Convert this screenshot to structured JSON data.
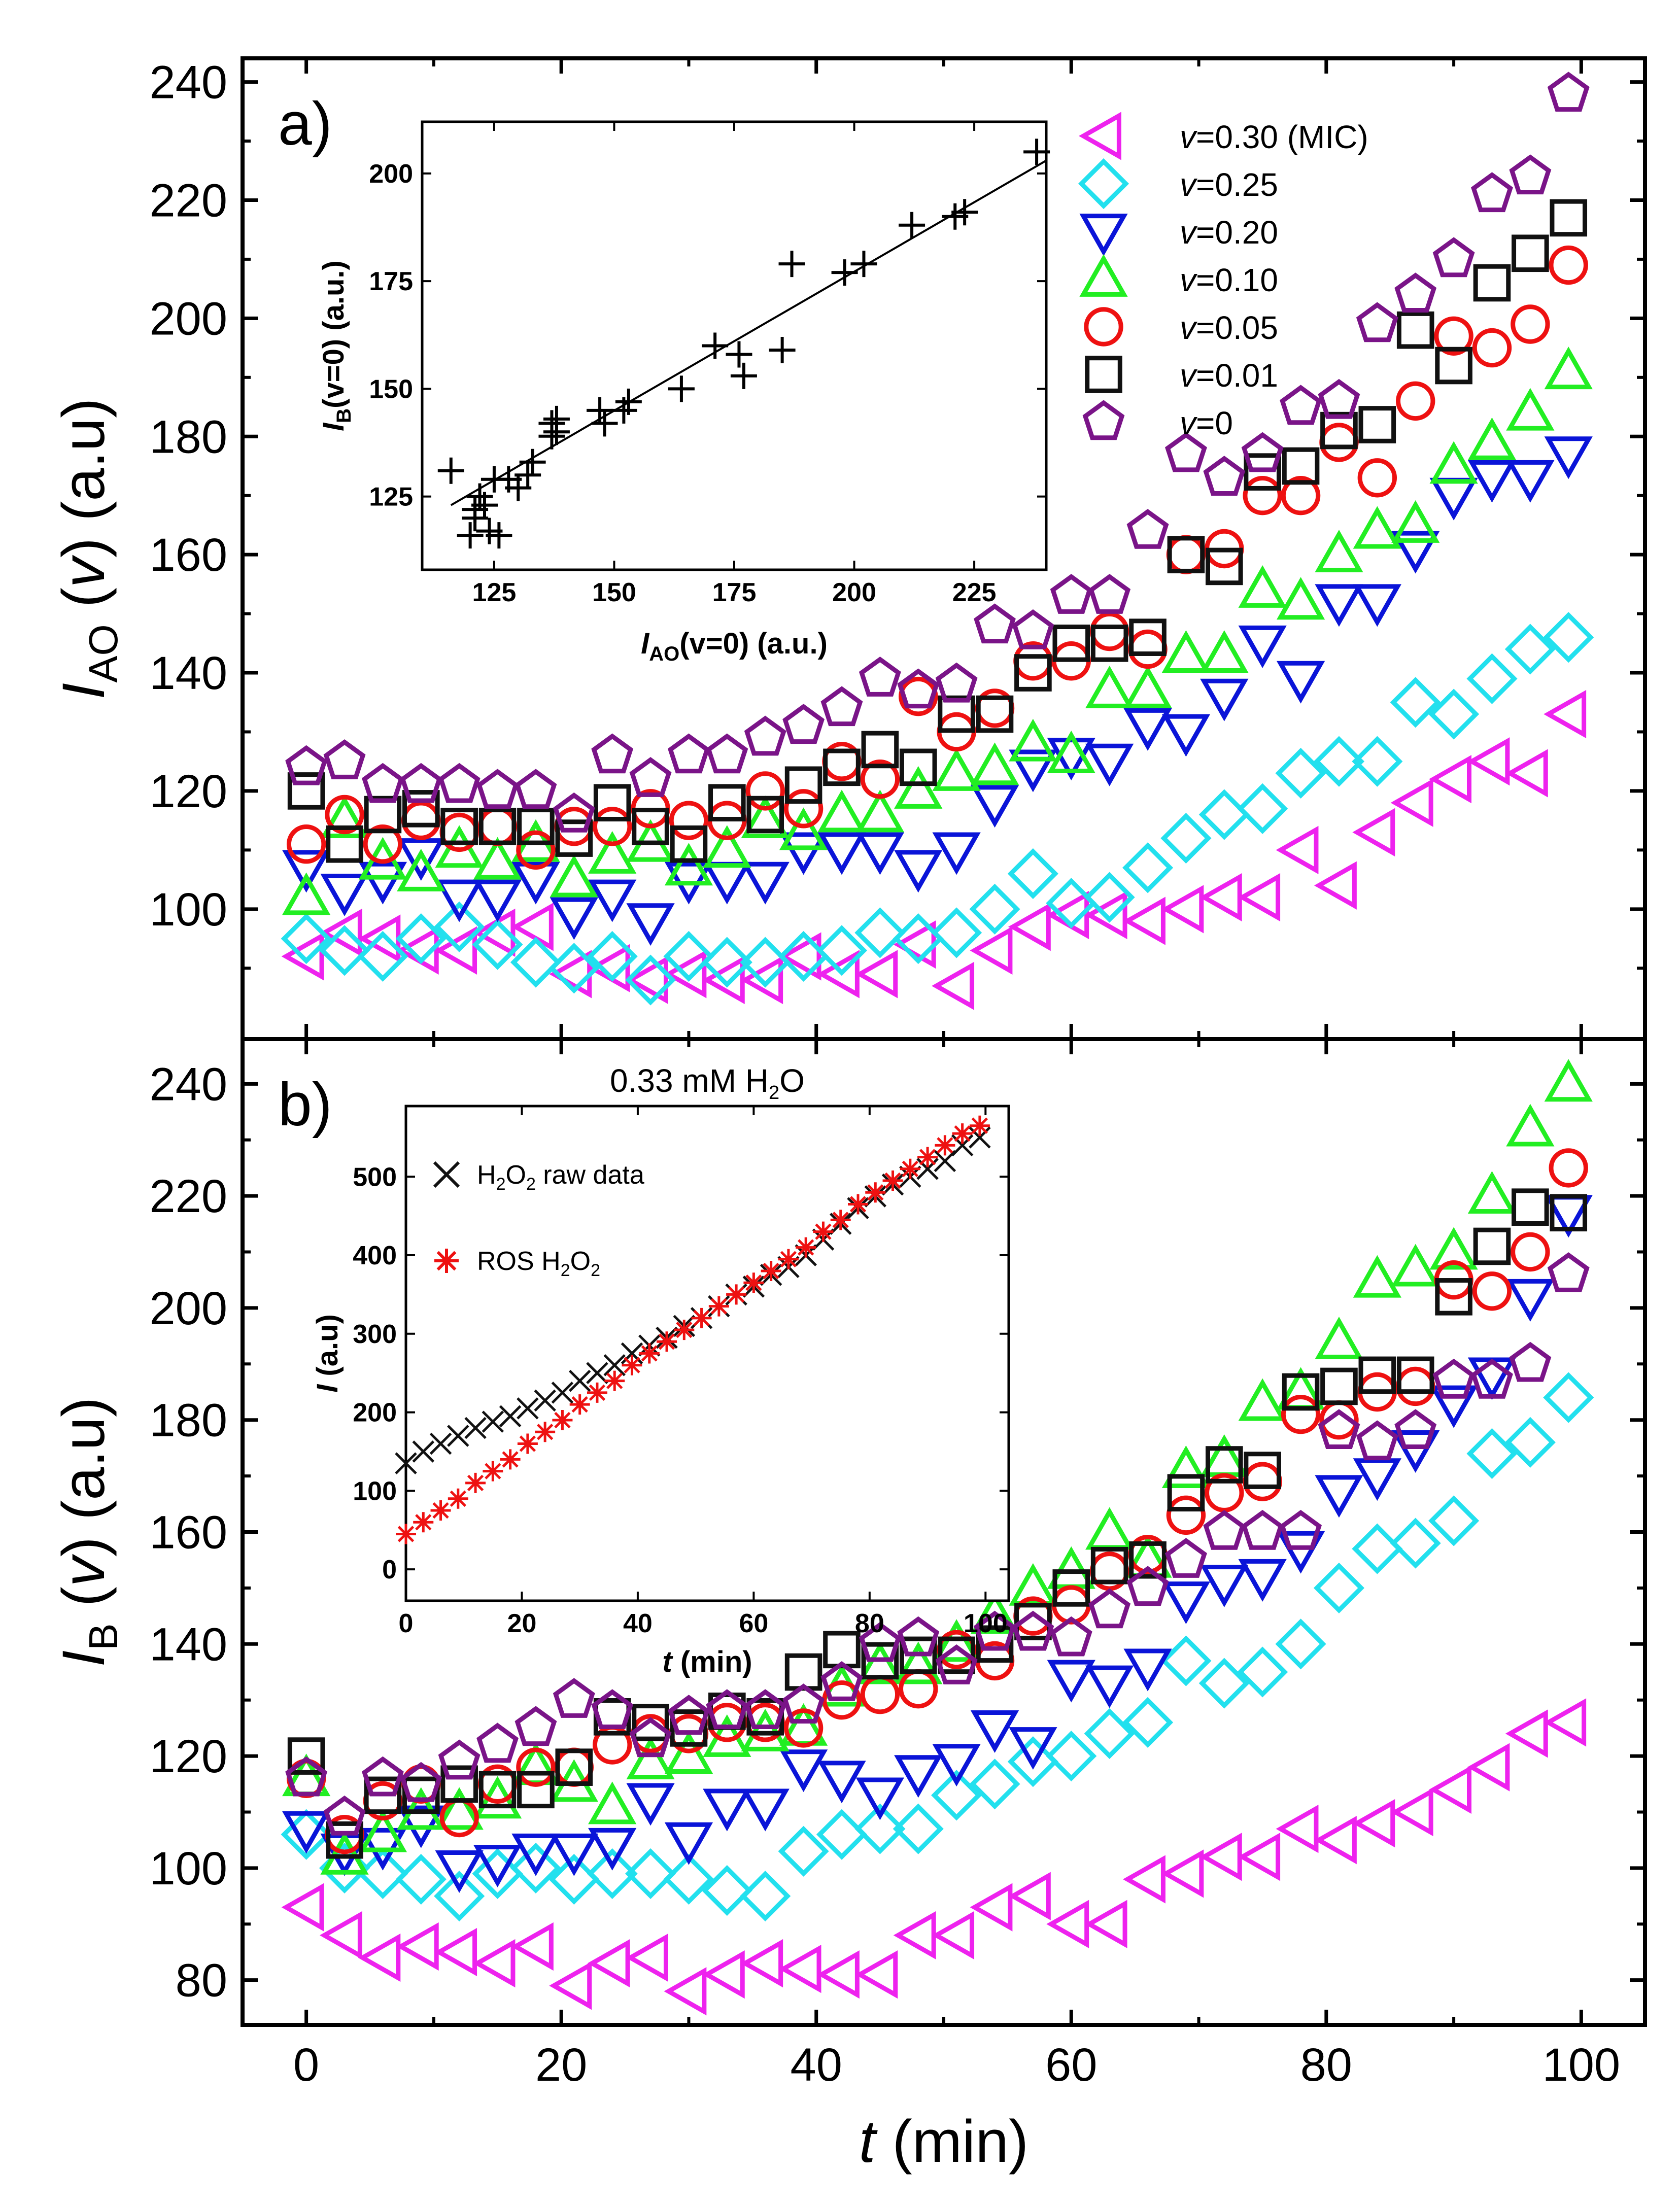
{
  "chart_data": [
    {
      "id": "a",
      "type": "scatter",
      "panel_label": "a)",
      "xlim": [
        -5,
        105
      ],
      "ylim": [
        78,
        244
      ],
      "yticks": [
        100,
        120,
        140,
        160,
        180,
        200,
        220,
        240
      ],
      "ylabel": {
        "main": "I",
        "sub": "AO",
        "rest": " (",
        "italic": "v",
        "end": ") (a.u)"
      },
      "legend_location": "top-right",
      "x": [
        0,
        3,
        6,
        9,
        12,
        15,
        18,
        21,
        24,
        27,
        30,
        33,
        36,
        39,
        42,
        45,
        48,
        51,
        54,
        57,
        60,
        63,
        66,
        69,
        72,
        75,
        78,
        81,
        84,
        87,
        90,
        93,
        96,
        99
      ],
      "series": [
        {
          "name": "v=0.30 (MIC)",
          "prefix": "v",
          "rest": "=0.30 (MIC)",
          "marker": "tri-left",
          "color": "#ee22ee",
          "values": [
            92,
            96,
            95,
            93,
            93,
            96,
            97,
            89,
            90,
            88,
            89,
            88,
            88,
            92,
            89,
            89,
            94,
            87,
            93,
            97,
            99,
            99,
            98,
            100,
            102,
            102,
            110,
            104,
            113,
            118,
            122,
            125,
            123,
            133
          ]
        },
        {
          "name": "v=0.25",
          "prefix": "v",
          "rest": "=0.25",
          "marker": "diamond",
          "color": "#22e0ee",
          "values": [
            95,
            93,
            92,
            95,
            97,
            94,
            91,
            90,
            92,
            88,
            92,
            91,
            91,
            92,
            93,
            96,
            95,
            96,
            100,
            106,
            101,
            102,
            107,
            112,
            116,
            117,
            123,
            125,
            125,
            135,
            133,
            139,
            144,
            146
          ]
        },
        {
          "name": "v=0.20",
          "prefix": "v",
          "rest": "=0.20",
          "marker": "tri-down",
          "color": "#0a14d8",
          "values": [
            107,
            103,
            105,
            109,
            102,
            102,
            105,
            99,
            102,
            98,
            105,
            105,
            105,
            110,
            110,
            110,
            107,
            110,
            118,
            124,
            126,
            125,
            131,
            130,
            136,
            145,
            139,
            152,
            152,
            161,
            170,
            173,
            173,
            177
          ]
        },
        {
          "name": "v=0.10",
          "prefix": "v",
          "rest": "=0.10",
          "marker": "tri-up",
          "color": "#22ee22",
          "values": [
            102,
            115,
            108,
            106,
            110,
            108,
            111,
            105,
            109,
            111,
            107,
            110,
            115,
            113,
            116,
            116,
            120,
            123,
            124,
            128,
            126,
            137,
            137,
            143,
            143,
            154,
            152,
            160,
            164,
            165,
            175,
            179,
            184,
            191
          ]
        },
        {
          "name": "v=0.05",
          "prefix": "v",
          "rest": "=0.05",
          "marker": "circle",
          "color": "#ee1111",
          "values": [
            111,
            116,
            111,
            115,
            113,
            114,
            110,
            114,
            114,
            117,
            115,
            115,
            120,
            117,
            125,
            122,
            136,
            130,
            134,
            142,
            142,
            147,
            144,
            160,
            161,
            170,
            170,
            179,
            173,
            186,
            197,
            195,
            199,
            209
          ]
        },
        {
          "name": "v=0.01",
          "prefix": "v",
          "rest": "=0.01",
          "marker": "square",
          "color": "#111111",
          "values": [
            120,
            111,
            116,
            117,
            114,
            114,
            114,
            112,
            118,
            114,
            111,
            118,
            116,
            121,
            124,
            127,
            124,
            133,
            133,
            140,
            145,
            145,
            146,
            160,
            158,
            174,
            175,
            181,
            182,
            198,
            192,
            206,
            211,
            217
          ]
        },
        {
          "name": "v=0",
          "prefix": "v",
          "rest": "=0",
          "marker": "pentagon",
          "color": "#7a1488",
          "values": [
            124,
            125,
            121,
            121,
            121,
            120,
            120,
            116,
            126,
            122,
            126,
            126,
            129,
            131,
            134,
            139,
            137,
            138,
            148,
            147,
            153,
            153,
            164,
            177,
            173,
            177,
            185,
            186,
            199,
            204,
            210,
            221,
            224,
            238
          ]
        }
      ],
      "inset": {
        "type": "scatter",
        "xlabel": {
          "main": "I",
          "sub": "AO",
          "rest": "(v=0) (a.u.)"
        },
        "ylabel": {
          "main": "I",
          "sub": "B",
          "rest": "(v=0) (a.u.)"
        },
        "xlim": [
          110,
          240
        ],
        "ylim": [
          108,
          212
        ],
        "xticks": [
          125,
          150,
          175,
          200,
          225
        ],
        "yticks": [
          125,
          150,
          175,
          200
        ],
        "marker": "plus",
        "x": [
          116,
          120,
          121,
          121,
          122,
          123,
          124,
          125,
          126,
          128,
          130,
          132,
          133,
          137,
          137,
          138,
          138,
          147,
          148,
          152,
          153,
          164,
          171,
          176,
          177,
          185,
          187,
          198,
          202,
          212,
          221,
          223,
          238
        ],
        "y": [
          131,
          116,
          120,
          122,
          125,
          123,
          117,
          129,
          116,
          129,
          127,
          130,
          133,
          142,
          139,
          143,
          140,
          145,
          142,
          145,
          147,
          150,
          160,
          158,
          153,
          159,
          179,
          177,
          179,
          188,
          190,
          191,
          205
        ],
        "fit_line": {
          "x": [
            116,
            240
          ],
          "y": [
            123,
            203
          ]
        }
      }
    },
    {
      "id": "b",
      "type": "scatter",
      "panel_label": "b)",
      "xlim": [
        -5,
        105
      ],
      "ylim": [
        72,
        248
      ],
      "yticks": [
        80,
        100,
        120,
        140,
        160,
        180,
        200,
        220,
        240
      ],
      "xticks": [
        0,
        20,
        40,
        60,
        80,
        100
      ],
      "xlabel": {
        "main": "t",
        "rest": " (min)"
      },
      "ylabel": {
        "main": "I",
        "sub": "B",
        "rest": " (",
        "italic": "v",
        "end": ") (a.u)"
      },
      "x": [
        0,
        3,
        6,
        9,
        12,
        15,
        18,
        21,
        24,
        27,
        30,
        33,
        36,
        39,
        42,
        45,
        48,
        51,
        54,
        57,
        60,
        63,
        66,
        69,
        72,
        75,
        78,
        81,
        84,
        87,
        90,
        93,
        96,
        99
      ],
      "series": [
        {
          "name": "v=0.30 (MIC)",
          "marker": "tri-left",
          "color": "#ee22ee",
          "values": [
            93,
            88,
            84,
            86,
            85,
            83,
            86,
            79,
            83,
            84,
            78,
            81,
            83,
            82,
            81,
            81,
            88,
            88,
            93,
            95,
            90,
            90,
            98,
            99,
            102,
            102,
            107,
            105,
            108,
            110,
            114,
            118,
            124,
            126
          ]
        },
        {
          "name": "v=0.25",
          "marker": "diamond",
          "color": "#22e0ee",
          "values": [
            106,
            100,
            99,
            98,
            95,
            99,
            100,
            98,
            99,
            99,
            98,
            96,
            95,
            103,
            106,
            107,
            107,
            113,
            115,
            119,
            120,
            124,
            126,
            137,
            133,
            135,
            140,
            150,
            157,
            158,
            162,
            174,
            176,
            184
          ]
        },
        {
          "name": "v=0.20",
          "marker": "tri-down",
          "color": "#0a14d8",
          "values": [
            107,
            103,
            104,
            108,
            100,
            101,
            103,
            103,
            104,
            112,
            105,
            111,
            111,
            118,
            116,
            113,
            117,
            119,
            125,
            122,
            134,
            133,
            136,
            148,
            151,
            152,
            157,
            167,
            170,
            175,
            183,
            188,
            202,
            217
          ]
        },
        {
          "name": "v=0.10",
          "marker": "tri-up",
          "color": "#22ee22",
          "values": [
            116,
            102,
            106,
            110,
            110,
            112,
            118,
            115,
            111,
            119,
            120,
            123,
            124,
            125,
            132,
            136,
            136,
            140,
            145,
            150,
            153,
            160,
            155,
            171,
            173,
            183,
            185,
            194,
            205,
            207,
            210,
            220,
            232,
            240
          ]
        },
        {
          "name": "v=0.05",
          "marker": "circle",
          "color": "#ee1111",
          "values": [
            116,
            106,
            112,
            115,
            109,
            115,
            118,
            118,
            122,
            124,
            124,
            126,
            126,
            125,
            130,
            131,
            132,
            139,
            137,
            145,
            147,
            153,
            156,
            163,
            167,
            169,
            181,
            180,
            185,
            186,
            205,
            203,
            210,
            225
          ]
        },
        {
          "name": "v=0.01",
          "marker": "square",
          "color": "#111111",
          "values": [
            120,
            105,
            113,
            113,
            115,
            114,
            114,
            118,
            127,
            126,
            125,
            128,
            127,
            135,
            139,
            137,
            138,
            138,
            140,
            144,
            150,
            154,
            155,
            167,
            172,
            171,
            185,
            186,
            188,
            188,
            202,
            211,
            218,
            217
          ]
        },
        {
          "name": "v=0",
          "marker": "pentagon",
          "color": "#7a1488",
          "values": [
            116,
            109,
            116,
            115,
            119,
            122,
            125,
            130,
            128,
            123,
            127,
            128,
            128,
            129,
            133,
            140,
            141,
            136,
            142,
            142,
            141,
            146,
            150,
            155,
            160,
            160,
            160,
            178,
            176,
            178,
            187,
            187,
            190,
            206
          ]
        }
      ],
      "inset": {
        "title": {
          "text": "0.33 mM H",
          "sub": "2",
          "end": "O"
        },
        "xlim": [
          0,
          104
        ],
        "ylim": [
          -40,
          590
        ],
        "xticks": [
          0,
          20,
          40,
          60,
          80,
          100
        ],
        "yticks": [
          0,
          100,
          200,
          300,
          400,
          500
        ],
        "xlabel": {
          "main": "t",
          "rest": " (min)"
        },
        "ylabel": {
          "main": "I",
          "rest": " (a.u)"
        },
        "x": [
          0,
          3,
          6,
          9,
          12,
          15,
          18,
          21,
          24,
          27,
          30,
          33,
          36,
          39,
          42,
          45,
          48,
          51,
          54,
          57,
          60,
          63,
          66,
          69,
          72,
          75,
          78,
          81,
          84,
          87,
          90,
          93,
          96,
          99
        ],
        "series": [
          {
            "name": "H2O2 raw data",
            "parts": [
              "H",
              "2",
              "O",
              "2",
              " raw data"
            ],
            "marker": "x",
            "color": "#111111",
            "values": [
              135,
              150,
              160,
              170,
              180,
              188,
              195,
              205,
              215,
              225,
              240,
              250,
              260,
              275,
              285,
              295,
              310,
              320,
              335,
              350,
              360,
              375,
              385,
              400,
              420,
              440,
              460,
              475,
              490,
              500,
              510,
              520,
              540,
              550
            ]
          },
          {
            "name": "ROS H2O2",
            "parts": [
              "ROS H",
              "2",
              "O",
              "2",
              ""
            ],
            "marker": "asterisk",
            "color": "#ee1111",
            "values": [
              45,
              60,
              75,
              90,
              110,
              125,
              140,
              160,
              175,
              190,
              210,
              225,
              240,
              260,
              275,
              290,
              305,
              320,
              335,
              350,
              365,
              380,
              395,
              410,
              430,
              445,
              465,
              480,
              495,
              510,
              525,
              540,
              555,
              565
            ]
          }
        ]
      }
    }
  ]
}
